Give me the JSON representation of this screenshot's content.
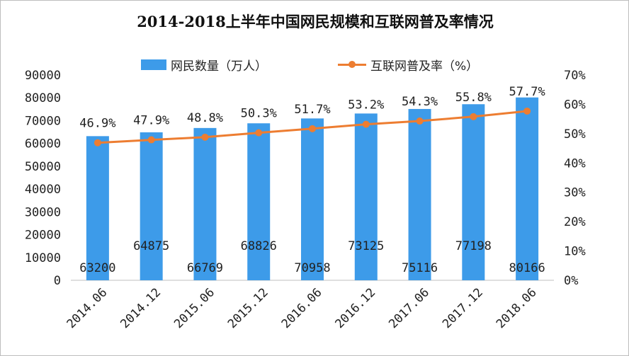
{
  "chart_data": {
    "type": "bar",
    "title": "2014-2018上半年中国网民规模和互联网普及率情况",
    "categories": [
      "2014.06",
      "2014.12",
      "2015.06",
      "2015.12",
      "2016.06",
      "2016.12",
      "2017.06",
      "2017.12",
      "2018.06"
    ],
    "series": [
      {
        "name": "网民数量（万人）",
        "type": "bar",
        "axis": "left",
        "values": [
          63200,
          64875,
          66769,
          68826,
          70958,
          73125,
          75116,
          77198,
          80166
        ],
        "labels": [
          "63200",
          "64875",
          "66769",
          "68826",
          "70958",
          "73125",
          "75116",
          "77198",
          "80166"
        ]
      },
      {
        "name": "互联网普及率（%）",
        "type": "line",
        "axis": "right",
        "values": [
          46.9,
          47.9,
          48.8,
          50.3,
          51.7,
          53.2,
          54.3,
          55.8,
          57.7
        ],
        "labels": [
          "46.9%",
          "47.9%",
          "48.8%",
          "50.3%",
          "51.7%",
          "53.2%",
          "54.3%",
          "55.8%",
          "57.7%"
        ]
      }
    ],
    "y_left": {
      "ylim": [
        0,
        90000
      ],
      "ticks": [
        "0",
        "10000",
        "20000",
        "30000",
        "40000",
        "50000",
        "60000",
        "70000",
        "80000",
        "90000"
      ]
    },
    "y_right": {
      "ylim": [
        0,
        70
      ],
      "ticks": [
        "0%",
        "10%",
        "20%",
        "30%",
        "40%",
        "50%",
        "60%",
        "70%"
      ]
    },
    "grid": false,
    "legend": "top-center",
    "colors": {
      "bar": "#3d9be9",
      "line": "#ed7d31",
      "text": "#222222"
    }
  }
}
